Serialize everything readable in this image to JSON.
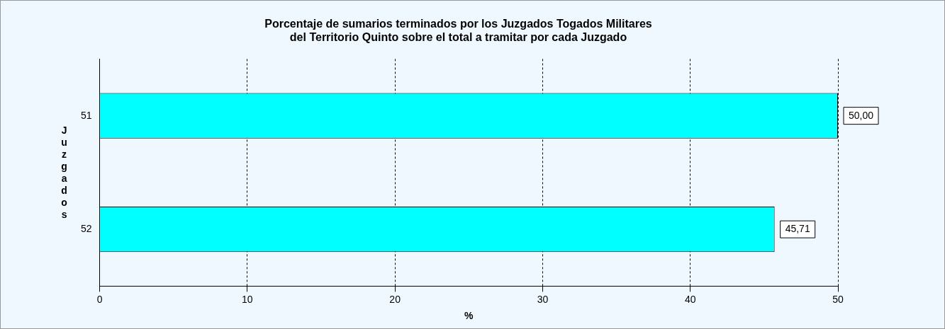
{
  "chart_data": {
    "type": "bar",
    "orientation": "horizontal",
    "title": "Porcentaje de sumarios terminados por los Juzgados Togados Militares del Territorio Quinto sobre el total a tramitar por cada Juzgado",
    "xlabel": "%",
    "ylabel": "Juzgados",
    "categories": [
      "51",
      "52"
    ],
    "series": [
      {
        "color": "#00ffff",
        "values": [
          50,
          45.71
        ],
        "value_labels": [
          "50,00",
          "45,71"
        ]
      }
    ],
    "xlim": [
      0,
      50
    ],
    "xticks": [
      0,
      10,
      20,
      30,
      40,
      50
    ],
    "grid": "x",
    "legend": false
  }
}
